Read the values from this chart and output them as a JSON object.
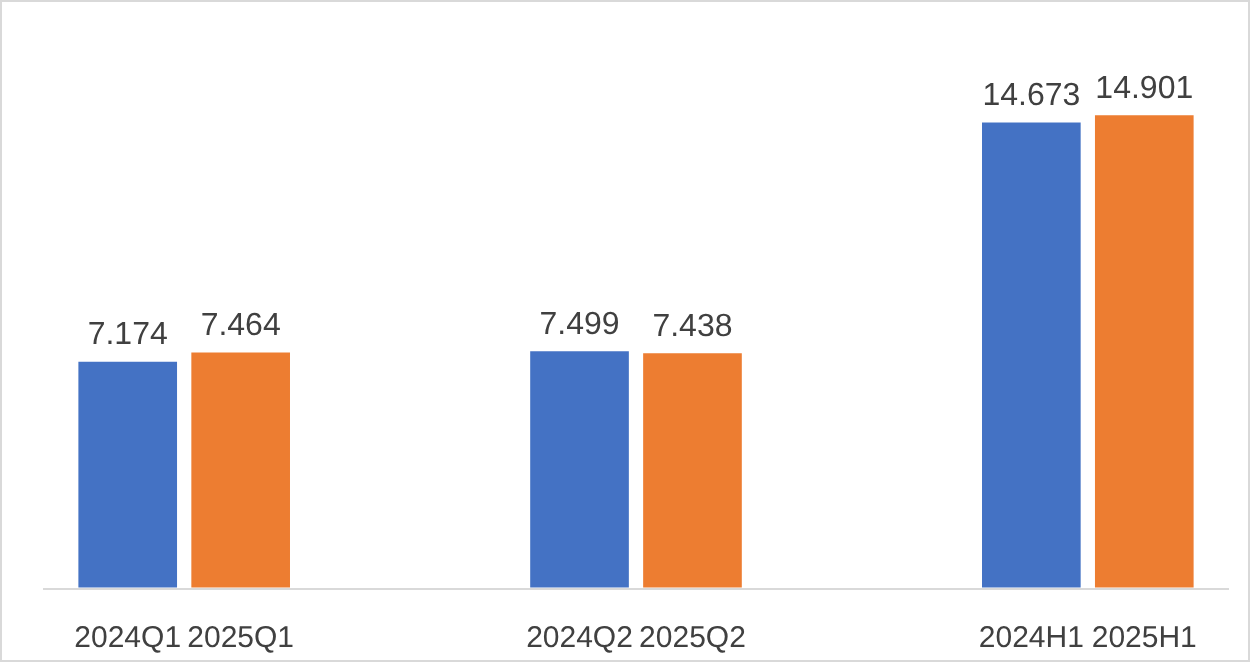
{
  "chart_data": {
    "type": "bar",
    "categories": [
      "2024Q1",
      "2025Q1",
      "2024Q2",
      "2025Q2",
      "2024H1",
      "2025H1"
    ],
    "values": [
      7.174,
      7.464,
      7.499,
      7.438,
      14.673,
      14.901
    ],
    "colors": [
      "#4472c4",
      "#ed7d31",
      "#4472c4",
      "#ed7d31",
      "#4472c4",
      "#ed7d31"
    ],
    "data_labels": true
  }
}
